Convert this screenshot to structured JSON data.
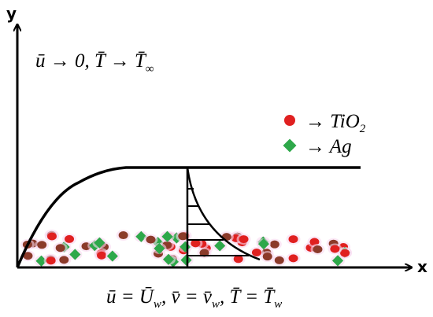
{
  "axes": {
    "y_label": "y",
    "x_label": "x"
  },
  "top_condition": [
    "ū → 0, T̄ → T̄",
    "∞"
  ],
  "legend": [
    {
      "label": [
        "→ TiO",
        "2"
      ]
    },
    {
      "label": [
        "→ Ag"
      ]
    }
  ],
  "bottom_condition": [
    "ū = Ū",
    "w",
    ", v̄ = v̄",
    "w",
    ", T̄ = T̄",
    "w"
  ]
}
